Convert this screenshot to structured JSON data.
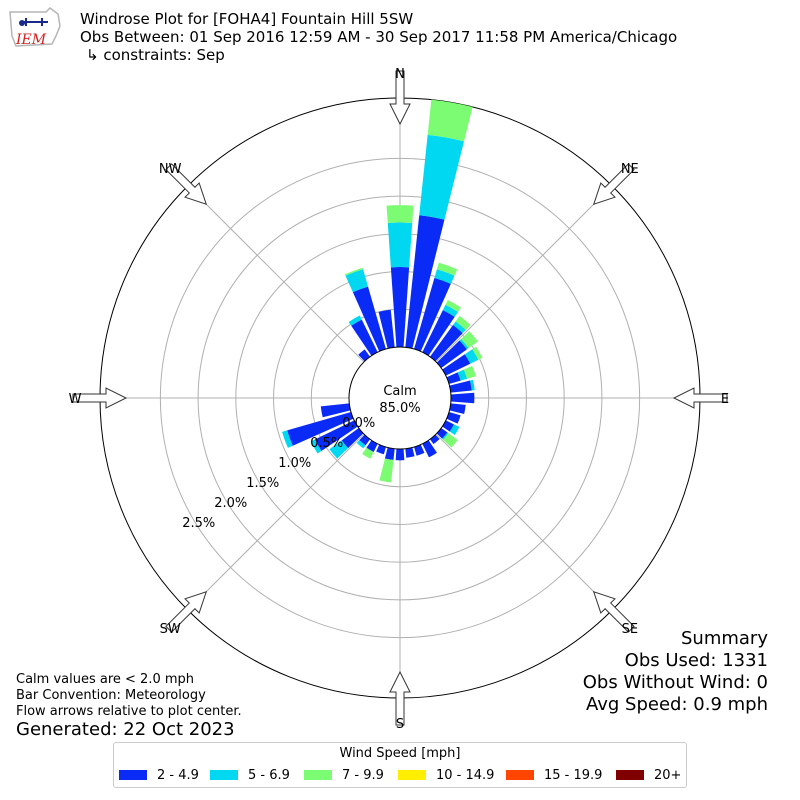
{
  "header": {
    "logo_text": "IEM",
    "title": "Windrose Plot for [FOHA4] Fountain Hill 5SW",
    "subtitle": "Obs Between: 01 Sep 2016 12:59 AM - 30 Sep 2017 11:58 PM America/Chicago",
    "constraints": "↳ constraints: Sep"
  },
  "notes": {
    "calm_definition": "Calm values are < 2.0 mph",
    "bar_convention": "Bar Convention: Meteorology",
    "flow_arrows": "Flow arrows relative to plot center.",
    "generated": "Generated: 22 Oct 2023"
  },
  "summary": {
    "title": "Summary",
    "obs_used": "Obs Used: 1331",
    "obs_without_wind": "Obs Without Wind: 0",
    "avg_speed": "Avg Speed: 0.9 mph"
  },
  "legend": {
    "title": "Wind Speed [mph]",
    "items": [
      {
        "label": "2 - 4.9",
        "color": "#0a2bf5"
      },
      {
        "label": "5 - 6.9",
        "color": "#00d7f0"
      },
      {
        "label": "7 - 9.9",
        "color": "#7cfc73"
      },
      {
        "label": "10 - 14.9",
        "color": "#ffee00"
      },
      {
        "label": "15 - 19.9",
        "color": "#ff4500"
      },
      {
        "label": "20+",
        "color": "#800000"
      }
    ]
  },
  "chart_data": {
    "type": "windrose",
    "title": "Windrose Plot for [FOHA4] Fountain Hill 5SW",
    "calm_label": "Calm",
    "calm_value": "85.0%",
    "units": "%",
    "radial_tick_labels": [
      "0.0%",
      "0.5%",
      "1.0%",
      "1.5%",
      "2.0%",
      "2.5%"
    ],
    "radial_ticks": [
      0.0,
      0.5,
      1.0,
      1.5,
      2.0,
      2.5
    ],
    "rmax": 3.3,
    "compass_labels": [
      "N",
      "NE",
      "E",
      "SE",
      "S",
      "SW",
      "W",
      "NW"
    ],
    "speed_bins": [
      "2 - 4.9",
      "5 - 6.9",
      "7 - 9.9",
      "10 - 14.9",
      "15 - 19.9",
      "20+"
    ],
    "bar_convention": "Meteorology",
    "direction_bin_width_deg": 10,
    "directions": [
      0,
      10,
      20,
      30,
      40,
      50,
      60,
      70,
      80,
      90,
      100,
      110,
      120,
      130,
      140,
      150,
      160,
      170,
      180,
      190,
      200,
      210,
      220,
      230,
      240,
      250,
      260,
      270,
      280,
      290,
      300,
      310,
      320,
      330,
      340,
      350
    ],
    "cumulative": [
      [
        1.06,
        1.65,
        1.88,
        1.88,
        1.88,
        1.88
      ],
      [
        1.76,
        2.83,
        3.3,
        3.3,
        3.3,
        3.3
      ],
      [
        0.98,
        1.1,
        1.19,
        1.19,
        1.19,
        1.19
      ],
      [
        0.62,
        0.7,
        0.77,
        0.77,
        0.77,
        0.77
      ],
      [
        0.52,
        0.58,
        0.67,
        0.67,
        0.67,
        0.67
      ],
      [
        0.42,
        0.45,
        0.6,
        0.6,
        0.6,
        0.6
      ],
      [
        0.36,
        0.48,
        0.54,
        0.54,
        0.54,
        0.54
      ],
      [
        0.16,
        0.25,
        0.37,
        0.37,
        0.37,
        0.37
      ],
      [
        0.28,
        0.32,
        0.32,
        0.32,
        0.32,
        0.32
      ],
      [
        0.31,
        0.31,
        0.31,
        0.31,
        0.31,
        0.31
      ],
      [
        0.2,
        0.2,
        0.2,
        0.2,
        0.2,
        0.2
      ],
      [
        0.16,
        0.16,
        0.16,
        0.16,
        0.16,
        0.16
      ],
      [
        0.12,
        0.2,
        0.2,
        0.2,
        0.2,
        0.2
      ],
      [
        0.1,
        0.12,
        0.27,
        0.27,
        0.27,
        0.27
      ],
      [
        0.08,
        0.08,
        0.08,
        0.08,
        0.08,
        0.08
      ],
      [
        0.2,
        0.2,
        0.2,
        0.2,
        0.2,
        0.2
      ],
      [
        0.12,
        0.12,
        0.12,
        0.12,
        0.12,
        0.12
      ],
      [
        0.12,
        0.12,
        0.12,
        0.12,
        0.12,
        0.12
      ],
      [
        0.15,
        0.15,
        0.15,
        0.15,
        0.15,
        0.15
      ],
      [
        0.15,
        0.15,
        0.45,
        0.45,
        0.45,
        0.45
      ],
      [
        0.1,
        0.1,
        0.1,
        0.1,
        0.1,
        0.1
      ],
      [
        0.12,
        0.12,
        0.22,
        0.22,
        0.22,
        0.22
      ],
      [
        0.1,
        0.15,
        0.15,
        0.15,
        0.15,
        0.15
      ],
      [
        0.28,
        0.48,
        0.48,
        0.48,
        0.48,
        0.48
      ],
      [
        0.58,
        0.64,
        0.64,
        0.64,
        0.64,
        0.64
      ],
      [
        0.88,
        0.95,
        0.95,
        0.95,
        0.95,
        0.95
      ],
      [
        0.38,
        0.38,
        0.38,
        0.38,
        0.38,
        0.38
      ],
      [
        0.0,
        0.0,
        0.0,
        0.0,
        0.0,
        0.0
      ],
      [
        0.0,
        0.0,
        0.0,
        0.0,
        0.0,
        0.0
      ],
      [
        0.0,
        0.0,
        0.0,
        0.0,
        0.0,
        0.0
      ],
      [
        0.0,
        0.0,
        0.0,
        0.0,
        0.0,
        0.0
      ],
      [
        0.0,
        0.0,
        0.0,
        0.0,
        0.0,
        0.0
      ],
      [
        0.12,
        0.12,
        0.12,
        0.12,
        0.12,
        0.12
      ],
      [
        0.48,
        0.54,
        0.54,
        0.54,
        0.54,
        0.54
      ],
      [
        0.86,
        1.1,
        1.12,
        1.12,
        1.12,
        1.12
      ],
      [
        0.5,
        0.5,
        0.5,
        0.5,
        0.5,
        0.5
      ]
    ]
  }
}
